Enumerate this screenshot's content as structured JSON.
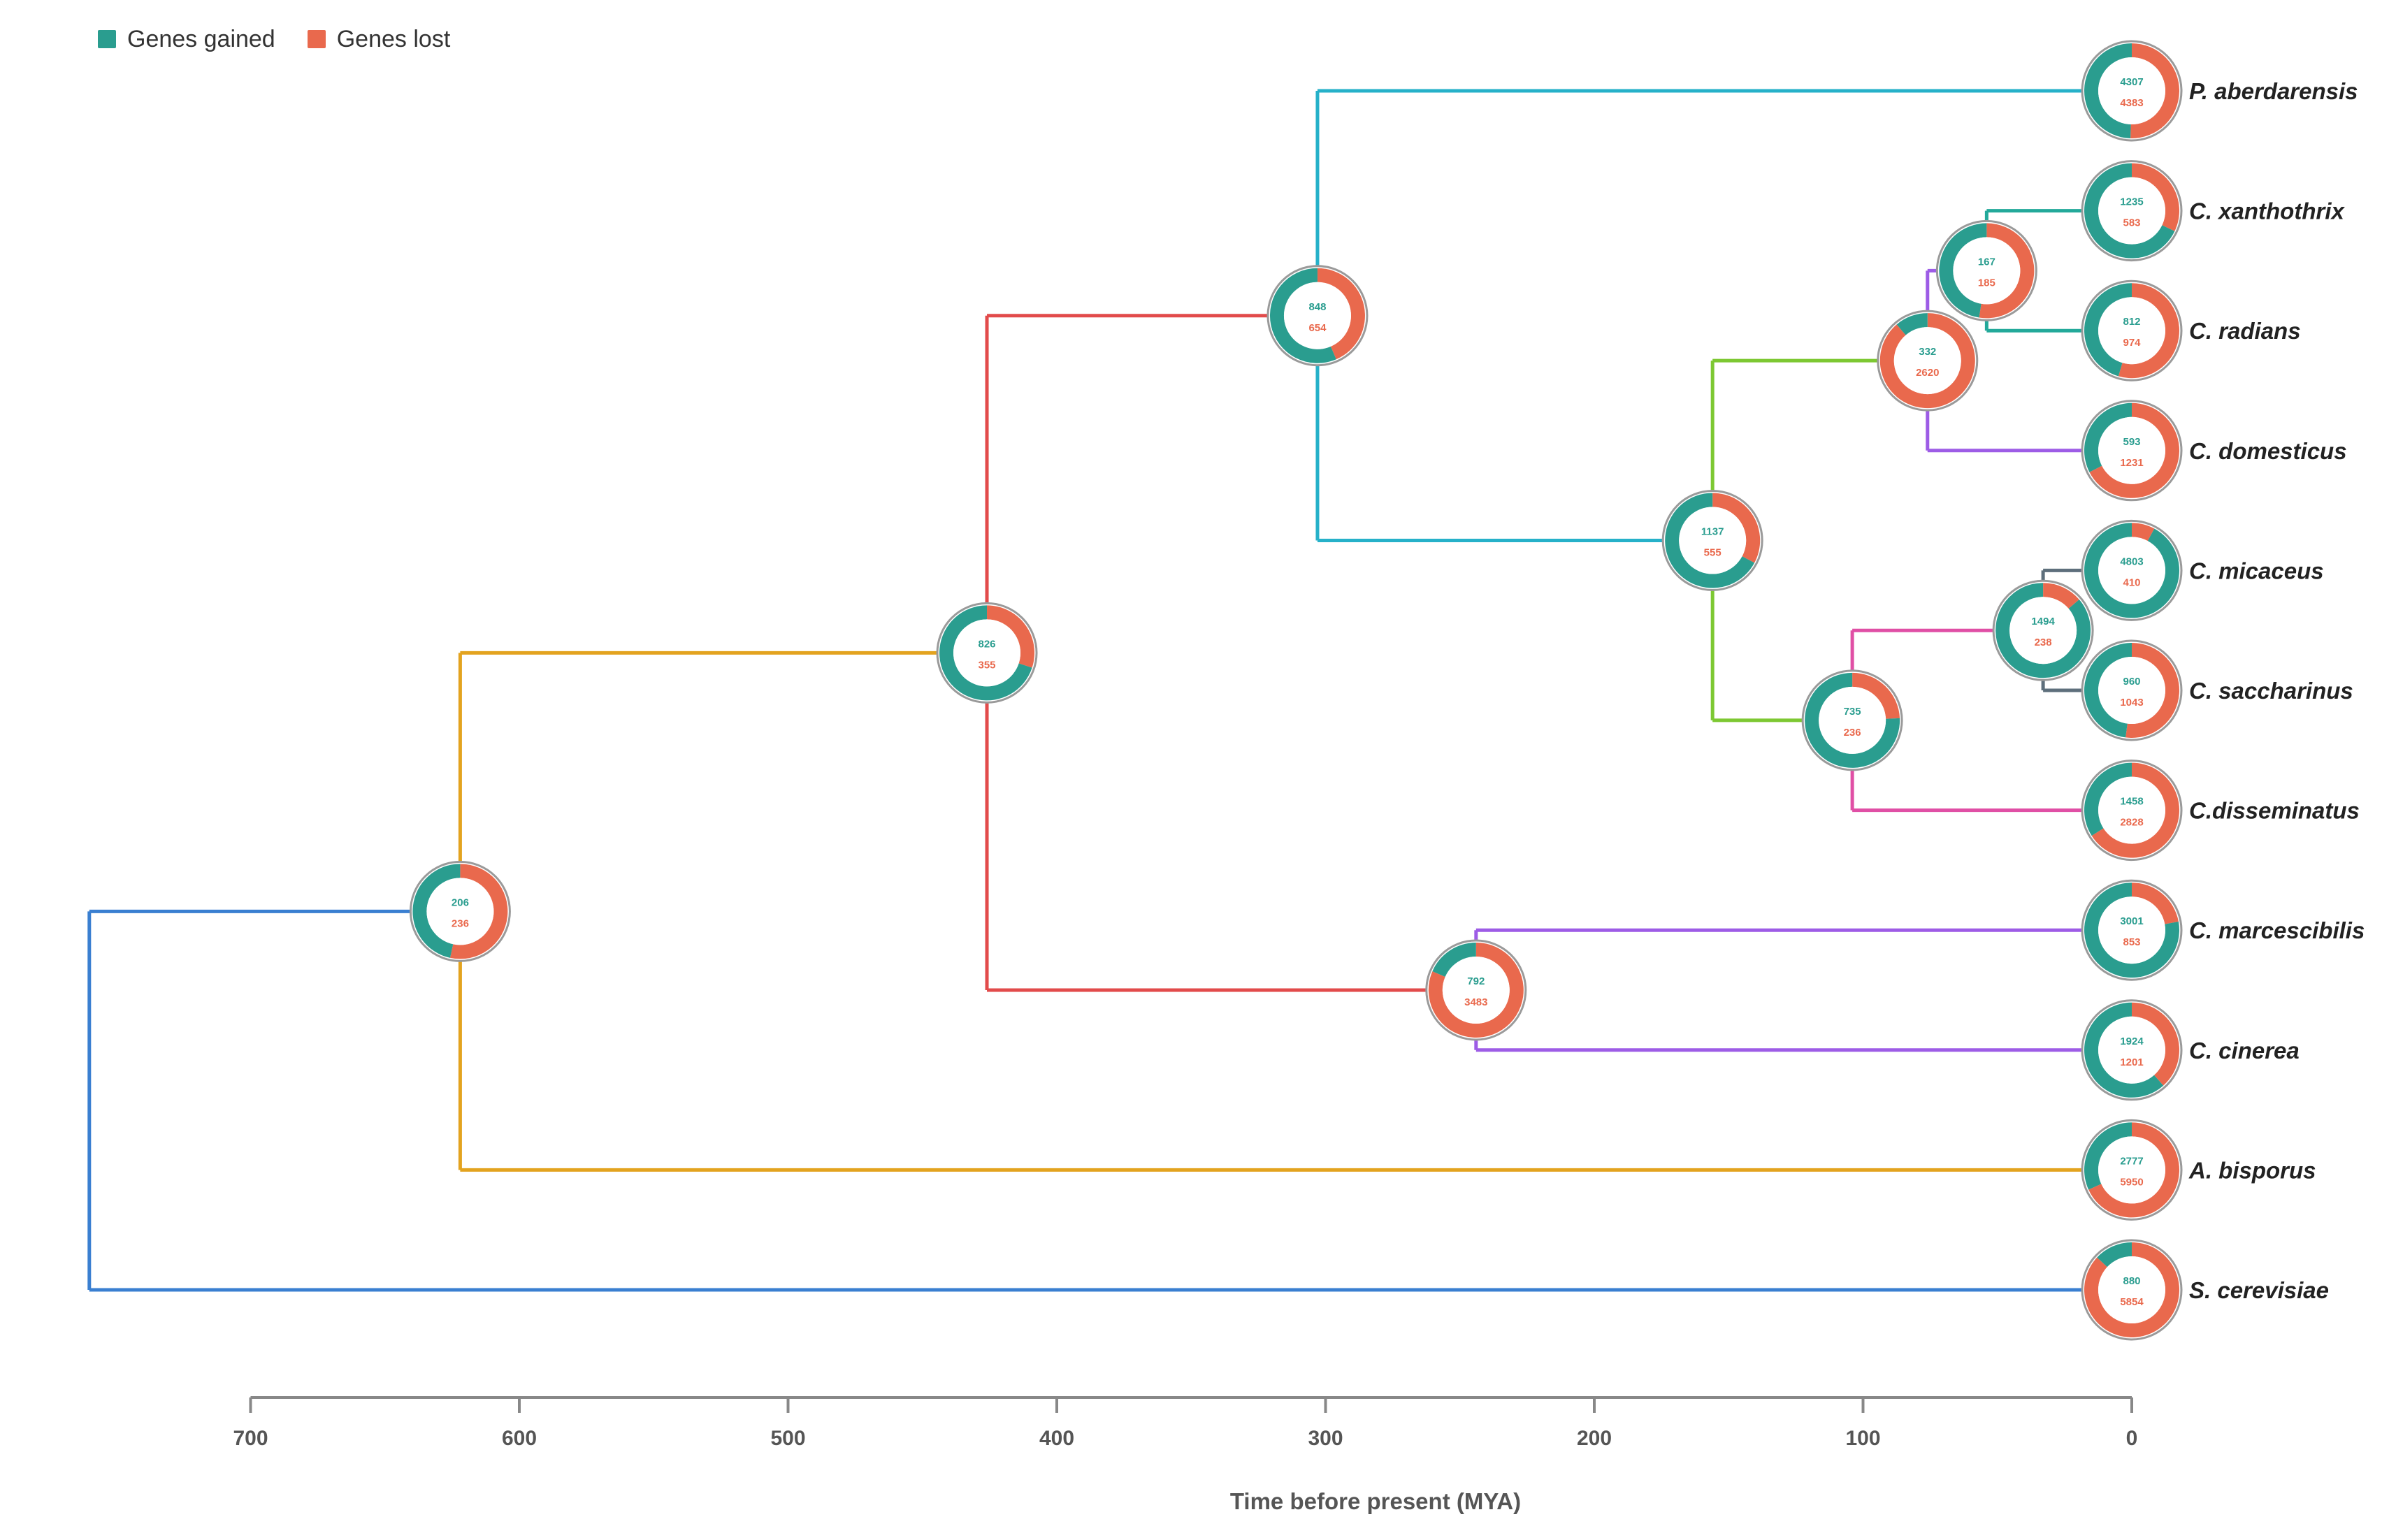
{
  "legend": {
    "gained_label": "Genes gained",
    "lost_label": "Genes lost",
    "gained_color": "#2a9d8f",
    "lost_color": "#e9694d"
  },
  "axis": {
    "label": "Time before present (MYA)",
    "ticks": [
      700,
      600,
      500,
      400,
      300,
      200,
      100,
      0
    ],
    "range": [
      700,
      0
    ]
  },
  "taxa": [
    {
      "id": "t1",
      "name": "P. aberdarensis",
      "gained": 4307,
      "lost": 4383
    },
    {
      "id": "t2",
      "name": "C. xanthothrix",
      "gained": 1235,
      "lost": 583
    },
    {
      "id": "t3",
      "name": "C. radians",
      "gained": 812,
      "lost": 974
    },
    {
      "id": "t4",
      "name": "C. domesticus",
      "gained": 593,
      "lost": 1231
    },
    {
      "id": "t5",
      "name": "C. micaceus",
      "gained": 4803,
      "lost": 410
    },
    {
      "id": "t6",
      "name": "C. saccharinus",
      "gained": 960,
      "lost": 1043
    },
    {
      "id": "t7",
      "name": "C.disseminatus",
      "gained": 1458,
      "lost": 2828
    },
    {
      "id": "t8",
      "name": "C. marcescibilis",
      "gained": 3001,
      "lost": 853
    },
    {
      "id": "t9",
      "name": "C. cinerea",
      "gained": 1924,
      "lost": 1201
    },
    {
      "id": "t10",
      "name": "A. bisporus",
      "gained": 2777,
      "lost": 5950
    },
    {
      "id": "t11",
      "name": "S. cerevisiae",
      "gained": 880,
      "lost": 5854
    }
  ],
  "nodes": [
    {
      "id": "n_root",
      "age_mya": 760,
      "color": "#3a7fd1",
      "children": [
        "n_a",
        "t11"
      ]
    },
    {
      "id": "n_a",
      "age_mya": 622,
      "gained": 206,
      "lost": 236,
      "color": "#e3a31f",
      "children": [
        "n_b",
        "t10"
      ]
    },
    {
      "id": "n_b",
      "age_mya": 426,
      "gained": 826,
      "lost": 355,
      "color": "#e24b4b",
      "children": [
        "n_c",
        "n_k"
      ]
    },
    {
      "id": "n_c",
      "age_mya": 303,
      "gained": 848,
      "lost": 654,
      "color": "#26b1c9",
      "children": [
        "t1",
        "n_d"
      ]
    },
    {
      "id": "n_d",
      "age_mya": 156,
      "gained": 1137,
      "lost": 555,
      "color": "#7dc832",
      "children": [
        "n_e",
        "n_h"
      ]
    },
    {
      "id": "n_e",
      "age_mya": 76,
      "gained": 332,
      "lost": 2620,
      "color": "#9d5ce6",
      "children": [
        "n_f",
        "t4"
      ]
    },
    {
      "id": "n_f",
      "age_mya": 54,
      "gained": 167,
      "lost": 185,
      "color": "#23a99a",
      "children": [
        "t2",
        "t3"
      ]
    },
    {
      "id": "n_h",
      "age_mya": 104,
      "gained": 735,
      "lost": 236,
      "color": "#e04fa5",
      "children": [
        "n_i",
        "t7"
      ]
    },
    {
      "id": "n_i",
      "age_mya": 33,
      "gained": 1494,
      "lost": 238,
      "color": "#5e6f7c",
      "children": [
        "t5",
        "t6"
      ]
    },
    {
      "id": "n_k",
      "age_mya": 244,
      "gained": 792,
      "lost": 3483,
      "color": "#9d5ce6",
      "children": [
        "t8",
        "t9"
      ]
    }
  ]
}
